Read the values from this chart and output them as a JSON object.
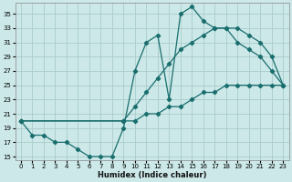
{
  "xlabel": "Humidex (Indice chaleur)",
  "bg_color": "#cce8e8",
  "grid_color": "#aacccc",
  "line_color": "#1a6e6e",
  "xlim": [
    -0.5,
    23.5
  ],
  "ylim": [
    14.5,
    36.5
  ],
  "xticks": [
    0,
    1,
    2,
    3,
    4,
    5,
    6,
    7,
    8,
    9,
    10,
    11,
    12,
    13,
    14,
    15,
    16,
    17,
    18,
    19,
    20,
    21,
    22,
    23
  ],
  "yticks": [
    15,
    17,
    19,
    21,
    23,
    25,
    27,
    29,
    31,
    33,
    35
  ],
  "line1_x": [
    0,
    1,
    2,
    3,
    4,
    5,
    6,
    7,
    8,
    9,
    10,
    11,
    12,
    13,
    14,
    15,
    16,
    17,
    18,
    19,
    20,
    21,
    22,
    23
  ],
  "line1_y": [
    20,
    18,
    18,
    17,
    17,
    16,
    15,
    15,
    15,
    19,
    27,
    31,
    32,
    23,
    35,
    36,
    34,
    33,
    33,
    31,
    30,
    29,
    27,
    25
  ],
  "line2_x": [
    0,
    9,
    10,
    11,
    12,
    13,
    14,
    15,
    16,
    17,
    18,
    19,
    20,
    21,
    22,
    23
  ],
  "line2_y": [
    20,
    20,
    22,
    24,
    26,
    28,
    30,
    31,
    32,
    33,
    33,
    33,
    32,
    31,
    29,
    25
  ],
  "line3_x": [
    0,
    9,
    10,
    11,
    12,
    13,
    14,
    15,
    16,
    17,
    18,
    19,
    20,
    21,
    22,
    23
  ],
  "line3_y": [
    20,
    20,
    20,
    21,
    21,
    22,
    22,
    23,
    24,
    24,
    25,
    25,
    25,
    25,
    25,
    25
  ]
}
